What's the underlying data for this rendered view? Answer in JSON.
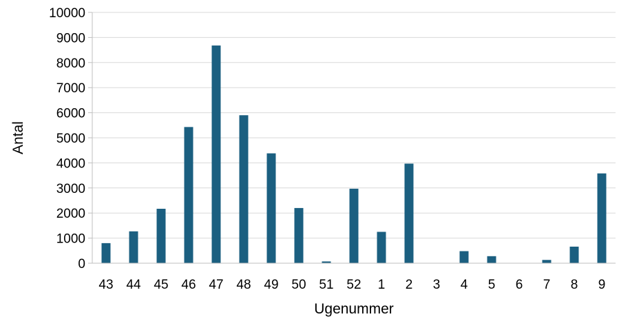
{
  "chart_data": {
    "type": "bar",
    "title": "",
    "xlabel": "Ugenummer",
    "ylabel": "Antal",
    "categories": [
      "43",
      "44",
      "45",
      "46",
      "47",
      "48",
      "49",
      "50",
      "51",
      "52",
      "1",
      "2",
      "3",
      "4",
      "5",
      "6",
      "7",
      "8",
      "9"
    ],
    "values": [
      800,
      1270,
      2170,
      5430,
      8680,
      5900,
      4380,
      2200,
      70,
      2970,
      1250,
      3970,
      0,
      480,
      280,
      0,
      130,
      660,
      3580
    ],
    "ylim": [
      0,
      10000
    ],
    "yticks": [
      0,
      1000,
      2000,
      3000,
      4000,
      5000,
      6000,
      7000,
      8000,
      9000,
      10000
    ],
    "grid": true,
    "legend": "none",
    "bar_color": "#1b5f80",
    "grid_color": "#d9d9d9"
  }
}
